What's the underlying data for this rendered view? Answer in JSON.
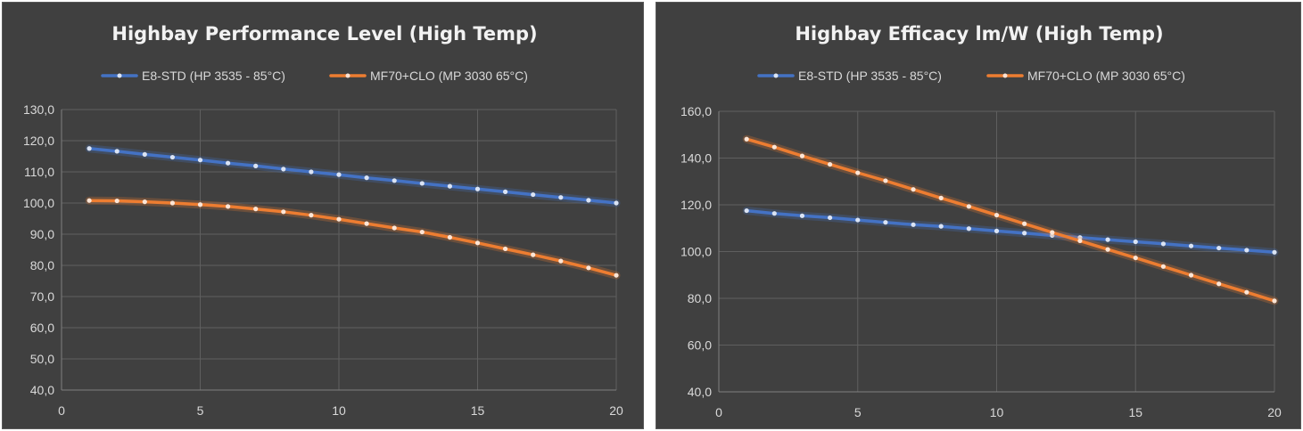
{
  "colors": {
    "background": "#404040",
    "e8": "#4472c4",
    "mf70": "#ed7d31",
    "text": "#d9d9d9",
    "title": "#f2f2f2"
  },
  "chart_data": [
    {
      "type": "line",
      "title": "Highbay Performance Level (High Temp)",
      "xlabel": "",
      "ylabel": "",
      "xlim": [
        0,
        20
      ],
      "ylim": [
        40,
        130
      ],
      "x_ticks": [
        0,
        5,
        10,
        15,
        20
      ],
      "y_ticks": [
        "40,0",
        "50,0",
        "60,0",
        "70,0",
        "80,0",
        "90,0",
        "100,0",
        "110,0",
        "120,0",
        "130,0"
      ],
      "grid": true,
      "legend_position": "top-center",
      "x": [
        1,
        2,
        3,
        4,
        5,
        6,
        7,
        8,
        9,
        10,
        11,
        12,
        13,
        14,
        15,
        16,
        17,
        18,
        19,
        20
      ],
      "series": [
        {
          "name": "E8-STD (HP 3535 - 85°C)",
          "color": "#4472c4",
          "values": [
            117.5,
            116.6,
            115.6,
            114.7,
            113.8,
            112.8,
            111.9,
            110.9,
            110.0,
            109.1,
            108.1,
            107.2,
            106.3,
            105.4,
            104.5,
            103.6,
            102.7,
            101.8,
            100.9,
            100.0
          ]
        },
        {
          "name": "MF70+CLO (MP 3030 65°C)",
          "color": "#ed7d31",
          "values": [
            100.8,
            100.7,
            100.4,
            100.0,
            99.5,
            98.9,
            98.1,
            97.2,
            96.1,
            94.8,
            93.4,
            92.0,
            90.7,
            89.0,
            87.2,
            85.3,
            83.4,
            81.4,
            79.2,
            76.8
          ]
        }
      ]
    },
    {
      "type": "line",
      "title": "Highbay Efficacy lm/W (High Temp)",
      "xlabel": "",
      "ylabel": "",
      "xlim": [
        0,
        20
      ],
      "ylim": [
        40,
        160
      ],
      "x_ticks": [
        0,
        5,
        10,
        15,
        20
      ],
      "y_ticks": [
        "40,0",
        "60,0",
        "80,0",
        "100,0",
        "120,0",
        "140,0",
        "160,0"
      ],
      "grid": true,
      "legend_position": "top-center",
      "x": [
        1,
        2,
        3,
        4,
        5,
        6,
        7,
        8,
        9,
        10,
        11,
        12,
        13,
        14,
        15,
        16,
        17,
        18,
        19,
        20
      ],
      "series": [
        {
          "name": "E8-STD (HP 3535 - 85°C)",
          "color": "#4472c4",
          "values": [
            117.5,
            116.3,
            115.3,
            114.5,
            113.5,
            112.5,
            111.5,
            110.8,
            109.8,
            108.8,
            107.9,
            106.9,
            106.0,
            105.1,
            104.2,
            103.3,
            102.4,
            101.5,
            100.6,
            99.7
          ]
        },
        {
          "name": "MF70+CLO (MP 3030 65°C)",
          "color": "#ed7d31",
          "values": [
            148.1,
            144.7,
            140.9,
            137.3,
            133.7,
            130.3,
            126.6,
            122.9,
            119.3,
            115.6,
            111.9,
            108.2,
            104.6,
            100.9,
            97.3,
            93.6,
            89.9,
            86.2,
            82.6,
            78.9
          ]
        }
      ]
    }
  ]
}
